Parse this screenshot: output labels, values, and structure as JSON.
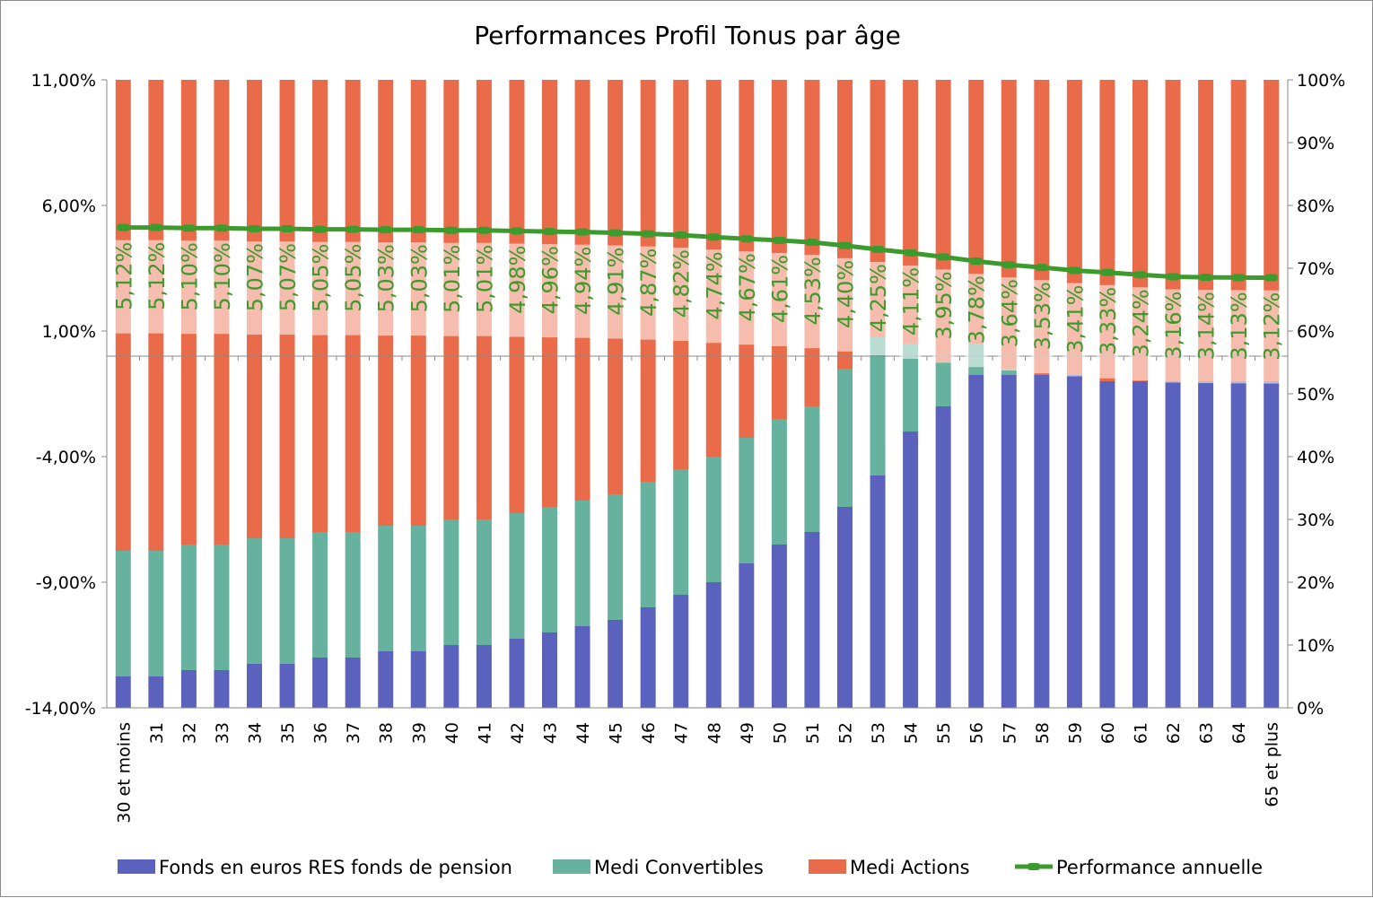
{
  "chart_data": {
    "type": "bar",
    "subtype": "stacked-bar-with-line-secondary-axis",
    "title": "Performances Profil Tonus par âge",
    "categories": [
      "30 et moins",
      "31",
      "32",
      "33",
      "34",
      "35",
      "36",
      "37",
      "38",
      "39",
      "40",
      "41",
      "42",
      "43",
      "44",
      "45",
      "46",
      "47",
      "48",
      "49",
      "50",
      "51",
      "52",
      "53",
      "54",
      "55",
      "56",
      "57",
      "58",
      "59",
      "60",
      "61",
      "62",
      "63",
      "64",
      "65 et plus"
    ],
    "y_left": {
      "ylim": [
        -14,
        11
      ],
      "ticks": [
        "11,00%",
        "6,00%",
        "1,00%",
        "-4,00%",
        "-9,00%",
        "-14,00%"
      ],
      "tick_values": [
        11,
        6,
        1,
        -4,
        -9,
        -14
      ]
    },
    "y_right": {
      "ylim": [
        0,
        100
      ],
      "ticks": [
        "100%",
        "90%",
        "80%",
        "70%",
        "60%",
        "50%",
        "40%",
        "30%",
        "20%",
        "10%",
        "0%"
      ],
      "tick_values": [
        100,
        90,
        80,
        70,
        60,
        50,
        40,
        30,
        20,
        10,
        0
      ]
    },
    "series": [
      {
        "name": "Fonds en euros RES fonds de pension",
        "kind": "bar",
        "axis": "right",
        "color": "#5b62bd",
        "values": [
          5,
          5,
          6,
          6,
          7,
          7,
          8,
          8,
          9,
          9,
          10,
          10,
          11,
          12,
          13,
          14,
          16,
          18,
          20,
          23,
          26,
          28,
          32,
          37,
          44,
          48,
          53,
          53,
          53,
          53,
          52,
          52,
          52,
          52,
          52,
          52
        ]
      },
      {
        "name": "Medi Convertibles",
        "kind": "bar",
        "axis": "right",
        "color": "#66b29e",
        "values": [
          20,
          20,
          20,
          20,
          20,
          20,
          20,
          20,
          20,
          20,
          20,
          20,
          20,
          20,
          20,
          20,
          20,
          20,
          20,
          20,
          20,
          20,
          22,
          22,
          14,
          7,
          5,
          1,
          0,
          0,
          0,
          0,
          0,
          0,
          0,
          0
        ]
      },
      {
        "name": "Medi Actions",
        "kind": "bar",
        "axis": "right",
        "color": "#ea6b49",
        "values": [
          75,
          75,
          74,
          74,
          73,
          73,
          72,
          72,
          71,
          71,
          70,
          70,
          69,
          68,
          67,
          66,
          64,
          62,
          60,
          57,
          54,
          52,
          46,
          41,
          42,
          45,
          42,
          46,
          47,
          47,
          48,
          48,
          48,
          48,
          48,
          48
        ]
      },
      {
        "name": "Performance annuelle",
        "kind": "line",
        "axis": "left",
        "color": "#3c9b2d",
        "values": [
          5.12,
          5.12,
          5.1,
          5.1,
          5.07,
          5.07,
          5.05,
          5.05,
          5.03,
          5.03,
          5.01,
          5.01,
          4.98,
          4.96,
          4.94,
          4.91,
          4.87,
          4.82,
          4.74,
          4.67,
          4.61,
          4.53,
          4.4,
          4.25,
          4.11,
          3.95,
          3.78,
          3.64,
          3.53,
          3.41,
          3.33,
          3.24,
          3.16,
          3.14,
          3.13,
          3.12
        ],
        "labels": [
          "5,12%",
          "5,12%",
          "5,10%",
          "5,10%",
          "5,07%",
          "5,07%",
          "5,05%",
          "5,05%",
          "5,03%",
          "5,03%",
          "5,01%",
          "5,01%",
          "4,98%",
          "4,96%",
          "4,94%",
          "4,91%",
          "4,87%",
          "4,82%",
          "4,74%",
          "4,67%",
          "4,61%",
          "4,53%",
          "4,40%",
          "4,25%",
          "4,11%",
          "3,95%",
          "3,78%",
          "3,64%",
          "3,53%",
          "3,41%",
          "3,33%",
          "3,24%",
          "3,16%",
          "3,14%",
          "3,13%",
          "3,12%"
        ]
      }
    ],
    "grid": false,
    "legend_position": "bottom"
  }
}
